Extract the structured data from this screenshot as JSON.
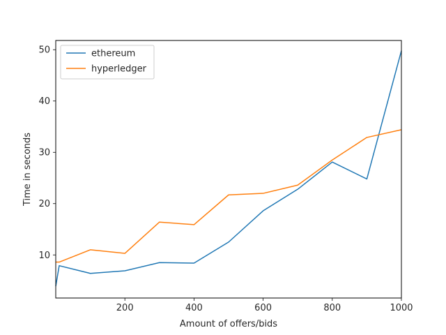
{
  "chart_data": {
    "type": "line",
    "title": "",
    "xlabel": "Amount of offers/bids",
    "ylabel": "Time in seconds",
    "xlim": [
      0,
      1000
    ],
    "ylim": [
      1.6,
      51.8
    ],
    "xticks": [
      200,
      400,
      600,
      800,
      1000
    ],
    "yticks": [
      10,
      20,
      30,
      40,
      50
    ],
    "grid": false,
    "legend_position": "top-left",
    "series": [
      {
        "name": "ethereum",
        "color": "#1f77b4",
        "x": [
          0,
          10,
          100,
          200,
          300,
          400,
          500,
          600,
          700,
          800,
          900,
          1000
        ],
        "y": [
          3.9,
          7.9,
          6.4,
          6.9,
          8.5,
          8.4,
          12.5,
          18.6,
          22.8,
          28.1,
          24.8,
          49.8
        ]
      },
      {
        "name": "hyperledger",
        "color": "#ff7f0e",
        "x": [
          0,
          10,
          100,
          200,
          300,
          400,
          500,
          600,
          700,
          800,
          900,
          1000
        ],
        "y": [
          8.6,
          8.6,
          11.0,
          10.3,
          16.4,
          15.9,
          21.7,
          22.0,
          23.6,
          28.5,
          32.9,
          34.4
        ]
      }
    ]
  }
}
